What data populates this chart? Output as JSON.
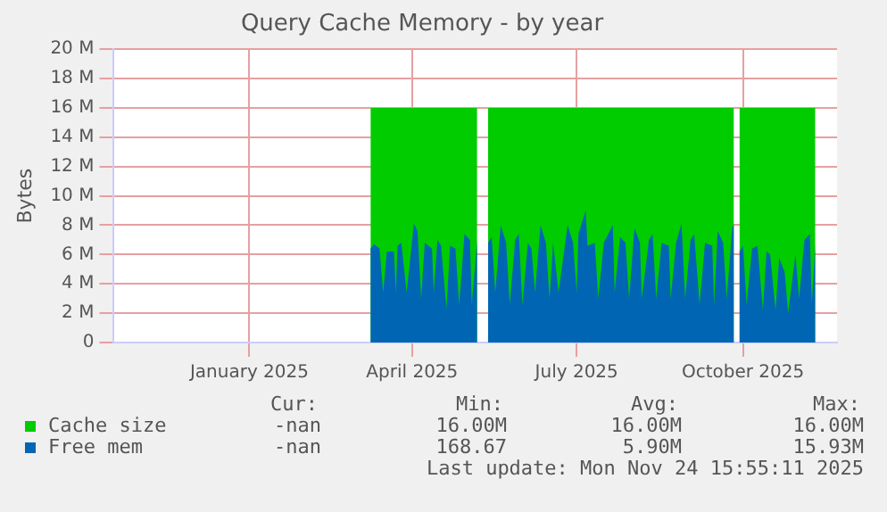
{
  "chart_data": {
    "type": "area",
    "title": "Query Cache Memory - by year",
    "ylabel": "Bytes",
    "xlim": [
      "2024-11-01",
      "2025-12-06"
    ],
    "xticks": [
      {
        "value": "2025-01-15",
        "label": "January 2025"
      },
      {
        "value": "2025-04-15",
        "label": "April 2025"
      },
      {
        "value": "2025-07-15",
        "label": "July 2025"
      },
      {
        "value": "2025-10-15",
        "label": "October 2025"
      }
    ],
    "ylim": [
      0,
      20
    ],
    "yticks": [
      0,
      {
        "value": 2,
        "label": "2 M"
      },
      {
        "value": 4,
        "label": "4 M"
      },
      {
        "value": 6,
        "label": "6 M"
      },
      {
        "value": 8,
        "label": "8 M"
      },
      {
        "value": 10,
        "label": "10 M"
      },
      {
        "value": 12,
        "label": "12 M"
      },
      {
        "value": 14,
        "label": "14 M"
      },
      {
        "value": 16,
        "label": "16 M"
      },
      {
        "value": 18,
        "label": "18 M"
      },
      {
        "value": 20,
        "label": "20 M"
      }
    ],
    "grid": true,
    "legend": "bottom",
    "series": [
      {
        "name": "Cache size",
        "color": "#00cc00",
        "x": [
          "2025-03-23",
          "2025-05-21",
          "2025-05-24",
          "2025-05-27",
          "2025-10-10",
          "2025-10-11",
          "2025-10-13",
          "2025-11-24"
        ],
        "values": [
          16,
          16,
          null,
          16,
          16,
          null,
          16,
          16
        ]
      },
      {
        "name": "Free mem",
        "color": "#0066b3",
        "x": [
          "2025-03-23",
          "2025-03-25",
          "2025-03-28",
          "2025-03-30",
          "2025-04-01",
          "2025-04-05",
          "2025-04-06",
          "2025-04-07",
          "2025-04-09",
          "2025-04-12",
          "2025-04-16",
          "2025-04-18",
          "2025-04-20",
          "2025-04-22",
          "2025-04-26",
          "2025-04-27",
          "2025-04-29",
          "2025-05-01",
          "2025-05-04",
          "2025-05-06",
          "2025-05-09",
          "2025-05-11",
          "2025-05-14",
          "2025-05-17",
          "2025-05-18",
          "2025-05-21",
          "2025-05-24",
          "2025-05-27",
          "2025-05-29",
          "2025-05-31",
          "2025-06-03",
          "2025-06-06",
          "2025-06-08",
          "2025-06-11",
          "2025-06-13",
          "2025-06-15",
          "2025-06-18",
          "2025-06-20",
          "2025-06-22",
          "2025-06-25",
          "2025-06-28",
          "2025-06-30",
          "2025-07-02",
          "2025-07-05",
          "2025-07-10",
          "2025-07-13",
          "2025-07-15",
          "2025-07-16",
          "2025-07-20",
          "2025-07-21",
          "2025-07-25",
          "2025-07-27",
          "2025-07-30",
          "2025-08-04",
          "2025-08-05",
          "2025-08-08",
          "2025-08-11",
          "2025-08-13",
          "2025-08-16",
          "2025-08-19",
          "2025-08-20",
          "2025-08-24",
          "2025-08-26",
          "2025-08-28",
          "2025-08-31",
          "2025-09-04",
          "2025-09-05",
          "2025-09-08",
          "2025-09-11",
          "2025-09-13",
          "2025-09-16",
          "2025-09-18",
          "2025-09-21",
          "2025-09-24",
          "2025-09-28",
          "2025-09-29",
          "2025-10-01",
          "2025-10-04",
          "2025-10-06",
          "2025-10-09",
          "2025-10-10",
          "2025-10-11",
          "2025-10-13",
          "2025-10-15",
          "2025-10-17",
          "2025-10-20",
          "2025-10-23",
          "2025-10-26",
          "2025-10-28",
          "2025-10-30",
          "2025-11-02",
          "2025-11-04",
          "2025-11-07",
          "2025-11-09",
          "2025-11-13",
          "2025-11-15",
          "2025-11-18",
          "2025-11-21",
          "2025-11-22",
          "2025-11-24"
        ],
        "values": [
          6.4,
          6.7,
          6.4,
          3.4,
          6.2,
          6.2,
          3.4,
          6.6,
          6.8,
          3.4,
          8.1,
          7.6,
          3.0,
          6.8,
          6.4,
          3.4,
          7.0,
          6.6,
          2.3,
          6.6,
          6.4,
          2.6,
          7.4,
          7.0,
          2.6,
          7.0,
          null,
          6.8,
          7.2,
          3.4,
          8.0,
          6.8,
          2.6,
          7.0,
          7.4,
          2.6,
          6.8,
          6.4,
          3.4,
          8.0,
          6.8,
          3.0,
          6.8,
          3.4,
          8.0,
          6.8,
          3.4,
          7.4,
          9.0,
          6.6,
          6.8,
          3.0,
          6.8,
          8.0,
          3.4,
          7.2,
          6.8,
          3.0,
          7.8,
          6.8,
          3.0,
          7.0,
          7.4,
          3.0,
          6.8,
          6.6,
          3.0,
          6.8,
          8.1,
          3.0,
          7.0,
          7.4,
          2.6,
          6.8,
          6.6,
          2.6,
          7.6,
          6.8,
          3.0,
          7.8,
          8.1,
          null,
          6.2,
          6.6,
          2.6,
          6.4,
          6.6,
          2.2,
          6.2,
          6.0,
          2.2,
          5.8,
          4.8,
          2.0,
          6.0,
          3.0,
          7.0,
          7.4,
          2.6,
          6.8
        ]
      }
    ],
    "annotations": [
      "Cur:",
      "Min:",
      "Avg:",
      "Max:",
      "-nan",
      "16.00M",
      "16.00M",
      "16.00M",
      "-nan",
      "168.67",
      "5.90M",
      "15.93M",
      "Last update: Mon Nov 24 15:55:11 2025"
    ]
  }
}
